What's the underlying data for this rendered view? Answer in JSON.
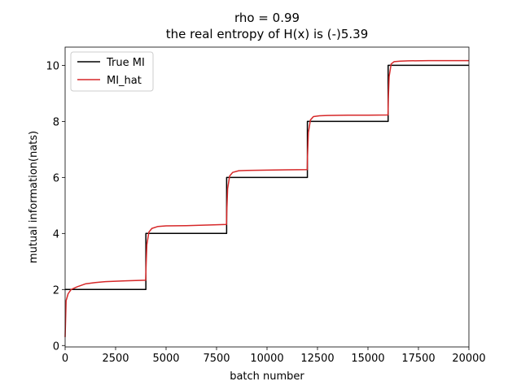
{
  "chart_data": {
    "type": "line",
    "title_lines": [
      "rho = 0.99",
      "the real entropy of H(x) is (-)5.39"
    ],
    "xlabel": "batch number",
    "ylabel": "mutual information(nats)",
    "xlim": [
      0,
      20000
    ],
    "ylim": [
      -0.05,
      10.65
    ],
    "x_ticks": [
      0,
      2500,
      5000,
      7500,
      10000,
      12500,
      15000,
      17500,
      20000
    ],
    "y_ticks": [
      0,
      2,
      4,
      6,
      8,
      10
    ],
    "legend_placement": "upper left",
    "grid": false,
    "series": [
      {
        "name": "True MI",
        "color": "#000000",
        "x": [
          0,
          4000,
          4000,
          8000,
          8000,
          12000,
          12000,
          16000,
          16000,
          20000
        ],
        "y": [
          2,
          2,
          4,
          4,
          6,
          6,
          8,
          8,
          10,
          10
        ]
      },
      {
        "name": "MI_hat",
        "color": "#d62728",
        "x": [
          0,
          50,
          150,
          300,
          600,
          1000,
          1500,
          2000,
          3000,
          3990,
          4010,
          4050,
          4150,
          4300,
          4600,
          5000,
          6000,
          7000,
          7990,
          8010,
          8050,
          8150,
          8300,
          8600,
          9000,
          10000,
          11000,
          11990,
          12010,
          12050,
          12150,
          12300,
          12600,
          13000,
          14000,
          15000,
          15990,
          16010,
          16050,
          16150,
          16300,
          16600,
          17000,
          18000,
          19000,
          20000
        ],
        "y": [
          0.3,
          1.6,
          1.85,
          2.0,
          2.1,
          2.2,
          2.25,
          2.28,
          2.31,
          2.33,
          2.8,
          3.6,
          4.05,
          4.18,
          4.25,
          4.27,
          4.28,
          4.3,
          4.32,
          4.8,
          5.6,
          6.05,
          6.18,
          6.24,
          6.25,
          6.26,
          6.27,
          6.28,
          6.8,
          7.6,
          8.05,
          8.17,
          8.2,
          8.21,
          8.22,
          8.22,
          8.23,
          8.8,
          9.6,
          10.05,
          10.13,
          10.15,
          10.16,
          10.17,
          10.17,
          10.17
        ]
      }
    ]
  }
}
